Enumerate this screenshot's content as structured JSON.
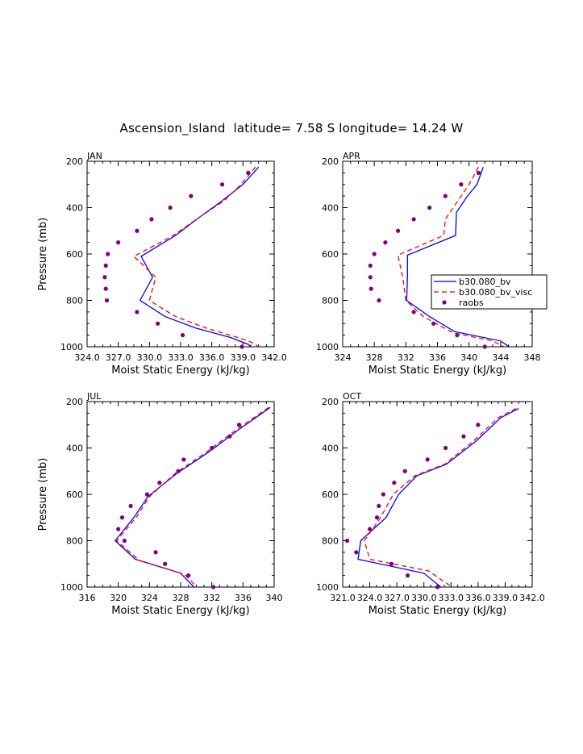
{
  "title": "Ascension_Island  latitude= 7.58 S longitude= 14.24 W",
  "legend": {
    "entries": [
      {
        "label": "b30.080_bv",
        "style": "solid",
        "color": "#0000ff"
      },
      {
        "label": "b30.080_bv_visc",
        "style": "dashed",
        "color": "#ff0000"
      },
      {
        "label": "raobs",
        "style": "dots",
        "color": "#800080"
      }
    ]
  },
  "chart_data": [
    {
      "type": "line",
      "panel": "JAN",
      "xlabel": "Moist Static Energy (kJ/kg)",
      "ylabel": "Pressure (mb)",
      "xlim": [
        324,
        342
      ],
      "ylim": [
        1000,
        200
      ],
      "xticks": [
        324,
        327,
        330,
        333,
        336,
        339,
        342
      ],
      "xticklabels": [
        "324.0",
        "327.0",
        "330.0",
        "333.0",
        "336.0",
        "339.0",
        "342.0"
      ],
      "yticks": [
        200,
        400,
        600,
        800,
        1000
      ],
      "series": [
        {
          "name": "b30.080_bv",
          "points": [
            [
              340.5,
              225
            ],
            [
              339.0,
              300
            ],
            [
              337.0,
              370
            ],
            [
              335.0,
              435
            ],
            [
              332.5,
              520
            ],
            [
              329.2,
              610
            ],
            [
              330.3,
              700
            ],
            [
              329.1,
              800
            ],
            [
              331.5,
              870
            ],
            [
              334.5,
              920
            ],
            [
              337.8,
              960
            ],
            [
              339.5,
              990
            ],
            [
              340.0,
              1010
            ]
          ]
        },
        {
          "name": "b30.080_bv_visc",
          "points": [
            [
              340.2,
              225
            ],
            [
              338.8,
              300
            ],
            [
              337.2,
              370
            ],
            [
              335.0,
              435
            ],
            [
              332.3,
              520
            ],
            [
              328.5,
              610
            ],
            [
              330.6,
              700
            ],
            [
              330.0,
              800
            ],
            [
              332.5,
              870
            ],
            [
              335.5,
              920
            ],
            [
              338.5,
              960
            ],
            [
              340.1,
              985
            ],
            [
              340.7,
              1010
            ]
          ]
        },
        {
          "name": "raobs",
          "points": [
            [
              339.5,
              250
            ],
            [
              337.0,
              300
            ],
            [
              334.0,
              350
            ],
            [
              332.0,
              400
            ],
            [
              330.2,
              450
            ],
            [
              328.8,
              500
            ],
            [
              327.0,
              550
            ],
            [
              326.0,
              600
            ],
            [
              325.8,
              650
            ],
            [
              325.7,
              700
            ],
            [
              325.8,
              750
            ],
            [
              325.9,
              800
            ],
            [
              328.8,
              850
            ],
            [
              330.8,
              900
            ],
            [
              333.2,
              950
            ],
            [
              338.9,
              1000
            ]
          ]
        }
      ]
    },
    {
      "type": "line",
      "panel": "APR",
      "xlabel": "Moist Static Energy (kJ/kg)",
      "ylabel": "",
      "xlim": [
        324,
        348
      ],
      "ylim": [
        1000,
        200
      ],
      "xticks": [
        324,
        328,
        332,
        336,
        340,
        344,
        348
      ],
      "xticklabels": [
        "324",
        "328",
        "332",
        "336",
        "340",
        "344",
        "348"
      ],
      "yticks": [
        200,
        400,
        600,
        800,
        1000
      ],
      "series": [
        {
          "name": "b30.080_bv",
          "points": [
            [
              341.8,
              225
            ],
            [
              341.0,
              300
            ],
            [
              339.8,
              350
            ],
            [
              338.4,
              420
            ],
            [
              338.3,
              520
            ],
            [
              332.2,
              605
            ],
            [
              332.2,
              700
            ],
            [
              332.1,
              800
            ],
            [
              335.0,
              870
            ],
            [
              338.2,
              935
            ],
            [
              344.0,
              975
            ],
            [
              345.5,
              1010
            ]
          ]
        },
        {
          "name": "b30.080_bv_visc",
          "points": [
            [
              341.2,
              225
            ],
            [
              340.0,
              300
            ],
            [
              338.4,
              380
            ],
            [
              337.0,
              450
            ],
            [
              336.8,
              520
            ],
            [
              331.0,
              605
            ],
            [
              331.6,
              700
            ],
            [
              332.0,
              800
            ],
            [
              334.2,
              870
            ],
            [
              338.0,
              940
            ],
            [
              343.0,
              975
            ],
            [
              345.0,
              1010
            ]
          ]
        },
        {
          "name": "raobs",
          "points": [
            [
              341.2,
              250
            ],
            [
              339.0,
              300
            ],
            [
              337.0,
              350
            ],
            [
              335.0,
              400
            ],
            [
              333.0,
              450
            ],
            [
              331.0,
              500
            ],
            [
              329.4,
              550
            ],
            [
              328.0,
              600
            ],
            [
              327.5,
              650
            ],
            [
              327.5,
              700
            ],
            [
              327.6,
              750
            ],
            [
              328.6,
              800
            ],
            [
              333.0,
              850
            ],
            [
              335.5,
              900
            ],
            [
              338.5,
              950
            ],
            [
              342.0,
              1000
            ]
          ]
        }
      ]
    },
    {
      "type": "line",
      "panel": "JUL",
      "xlabel": "Moist Static Energy (kJ/kg)",
      "ylabel": "Pressure (mb)",
      "xlim": [
        316,
        340
      ],
      "ylim": [
        1000,
        200
      ],
      "xticks": [
        316,
        320,
        324,
        328,
        332,
        336,
        340
      ],
      "xticklabels": [
        "316",
        "320",
        "324",
        "328",
        "332",
        "336",
        "340"
      ],
      "yticks": [
        200,
        400,
        600,
        800,
        1000
      ],
      "series": [
        {
          "name": "b30.080_bv",
          "points": [
            [
              339.5,
              225
            ],
            [
              335.5,
              320
            ],
            [
              331.5,
              420
            ],
            [
              327.5,
              510
            ],
            [
              323.8,
              610
            ],
            [
              322.0,
              700
            ],
            [
              319.6,
              800
            ],
            [
              322.2,
              880
            ],
            [
              328.0,
              940
            ],
            [
              330.0,
              1010
            ]
          ]
        },
        {
          "name": "b30.080_bv_visc",
          "points": [
            [
              339.3,
              225
            ],
            [
              335.2,
              320
            ],
            [
              331.2,
              420
            ],
            [
              327.3,
              510
            ],
            [
              324.0,
              610
            ],
            [
              322.3,
              700
            ],
            [
              319.8,
              800
            ],
            [
              322.7,
              885
            ],
            [
              328.5,
              945
            ],
            [
              330.4,
              1010
            ]
          ]
        },
        {
          "name": "raobs",
          "points": [
            [
              335.5,
              300
            ],
            [
              334.3,
              350
            ],
            [
              332.0,
              400
            ],
            [
              328.4,
              450
            ],
            [
              327.7,
              500
            ],
            [
              325.3,
              550
            ],
            [
              323.7,
              600
            ],
            [
              321.6,
              650
            ],
            [
              320.5,
              700
            ],
            [
              320.0,
              750
            ],
            [
              320.8,
              800
            ],
            [
              324.8,
              850
            ],
            [
              326.0,
              900
            ],
            [
              329.0,
              950
            ],
            [
              332.2,
              1000
            ]
          ]
        }
      ]
    },
    {
      "type": "line",
      "panel": "OCT",
      "xlabel": "Moist Static Energy (kJ/kg)",
      "ylabel": "",
      "xlim": [
        321,
        342
      ],
      "ylim": [
        1000,
        200
      ],
      "xticks": [
        321,
        324,
        327,
        330,
        333,
        336,
        339,
        342
      ],
      "xticklabels": [
        "321.0",
        "324.0",
        "327.0",
        "330.0",
        "333.0",
        "336.0",
        "339.0",
        "342.0"
      ],
      "yticks": [
        200,
        400,
        600,
        800,
        1000
      ],
      "series": [
        {
          "name": "b30.080_bv",
          "points": [
            [
              340.5,
              230
            ],
            [
              338.5,
              270
            ],
            [
              335.8,
              370
            ],
            [
              332.5,
              470
            ],
            [
              329.2,
              520
            ],
            [
              327.2,
              600
            ],
            [
              325.8,
              700
            ],
            [
              323.0,
              800
            ],
            [
              322.7,
              880
            ],
            [
              330.0,
              940
            ],
            [
              332.2,
              1010
            ]
          ]
        },
        {
          "name": "b30.080_bv_visc",
          "points": [
            [
              340.2,
              230
            ],
            [
              338.2,
              270
            ],
            [
              335.5,
              370
            ],
            [
              332.3,
              470
            ],
            [
              329.0,
              520
            ],
            [
              326.6,
              600
            ],
            [
              325.2,
              700
            ],
            [
              323.4,
              800
            ],
            [
              324.0,
              880
            ],
            [
              330.5,
              930
            ],
            [
              333.5,
              1010
            ]
          ]
        },
        {
          "name": "raobs",
          "points": [
            [
              336.0,
              300
            ],
            [
              334.4,
              350
            ],
            [
              332.4,
              400
            ],
            [
              330.4,
              450
            ],
            [
              327.9,
              500
            ],
            [
              326.7,
              550
            ],
            [
              325.5,
              600
            ],
            [
              325.0,
              650
            ],
            [
              324.8,
              700
            ],
            [
              324.0,
              750
            ],
            [
              321.5,
              800
            ],
            [
              322.5,
              850
            ],
            [
              326.4,
              900
            ],
            [
              328.2,
              950
            ],
            [
              331.5,
              1000
            ]
          ]
        }
      ]
    }
  ]
}
